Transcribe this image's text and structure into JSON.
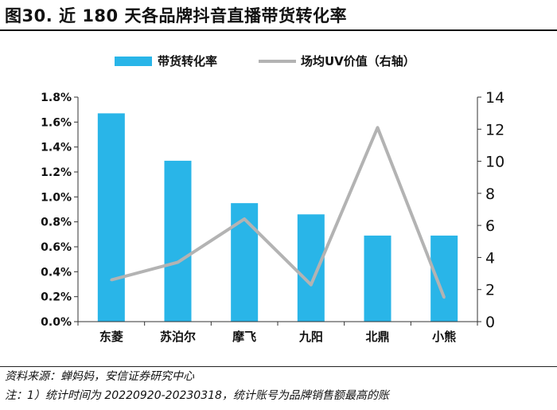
{
  "title": "图30. 近 180 天各品牌抖音直播带货转化率",
  "source": "资料来源：蝉妈妈，安信证券研究中心",
  "note": "注：1）统计时间为 20220920-20230318，统计账号为品牌销售额最高的账",
  "chart_data": {
    "type": "bar",
    "categories": [
      "东菱",
      "苏泊尔",
      "摩飞",
      "九阳",
      "北鼎",
      "小熊"
    ],
    "series": [
      {
        "name": "带货转化率",
        "type": "bar",
        "axis": "left",
        "color": "#29B5E8",
        "values": [
          1.67,
          1.29,
          0.95,
          0.86,
          0.69,
          0.69
        ]
      },
      {
        "name": "场均UV价值（右轴）",
        "type": "line",
        "axis": "right",
        "color": "#B3B3B3",
        "values": [
          2.6,
          3.7,
          6.4,
          2.3,
          12.1,
          1.5
        ]
      }
    ],
    "yleft": {
      "ticks": [
        "0.0%",
        "0.2%",
        "0.4%",
        "0.6%",
        "0.8%",
        "1.0%",
        "1.2%",
        "1.4%",
        "1.6%",
        "1.8%"
      ],
      "min": 0,
      "max": 1.8,
      "step": 0.2
    },
    "yright": {
      "ticks": [
        "0",
        "2",
        "4",
        "6",
        "8",
        "10",
        "12",
        "14"
      ],
      "min": 0,
      "max": 14,
      "step": 2
    },
    "legend_position": "top",
    "grid": false
  }
}
